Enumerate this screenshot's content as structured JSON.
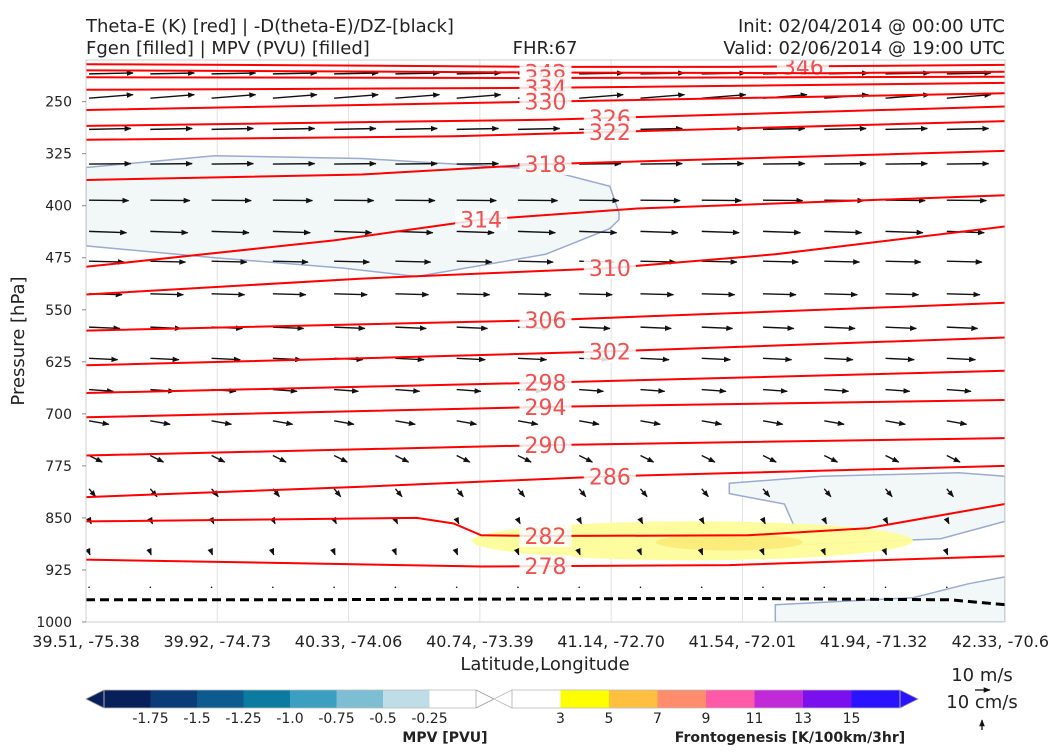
{
  "header": {
    "title_left_1": "Theta-E (K) [red] | -D(theta-E)/DZ-[black]",
    "title_left_2": "Fgen [filled] | MPV (PVU) [filled]",
    "fhr": "FHR:67",
    "init": "Init: 02/04/2014 @ 00:00 UTC",
    "valid": "Valid: 02/06/2014 @ 19:00 UTC"
  },
  "chart_data": {
    "type": "cross-section",
    "xlabel": "Latitude,Longitude",
    "ylabel": "Pressure [hPa]",
    "x_ticks": [
      "39.51, -75.38",
      "39.92, -74.73",
      "40.33, -74.06",
      "40.74, -73.39",
      "41.14, -72.70",
      "41.54, -72.01",
      "41.94, -71.32",
      "42.33, -70.6"
    ],
    "y_ticks": [
      250,
      325,
      400,
      475,
      550,
      625,
      700,
      775,
      850,
      925,
      1000
    ],
    "ylim": [
      190,
      1000
    ],
    "y_reversed": true,
    "theta_e_color": "#ff0000",
    "theta_e_label_color": "#f05050",
    "theta_e_contours": [
      {
        "value": "346",
        "label_x": 0.78,
        "points": [
          [
            0,
            196
          ],
          [
            0.3,
            198
          ],
          [
            0.5,
            200
          ],
          [
            0.7,
            200
          ],
          [
            1,
            197
          ]
        ]
      },
      {
        "value": "342",
        "label_x": 0.5,
        "points": [
          [
            0,
            205
          ],
          [
            0.2,
            206
          ],
          [
            0.5,
            208
          ],
          [
            0.8,
            209
          ],
          [
            1,
            207
          ]
        ]
      },
      {
        "value": "338",
        "label_x": 0.5,
        "points": [
          [
            0,
            215
          ],
          [
            0.5,
            216
          ],
          [
            1,
            214
          ]
        ]
      },
      {
        "value": "334",
        "label_x": 0.5,
        "points": [
          [
            0,
            233
          ],
          [
            0.5,
            230
          ],
          [
            1,
            223
          ]
        ]
      },
      {
        "value": "330",
        "label_x": 0.5,
        "points": [
          [
            0,
            262
          ],
          [
            0.5,
            250
          ],
          [
            1,
            238
          ]
        ]
      },
      {
        "value": "326",
        "label_x": 0.57,
        "points": [
          [
            0,
            285
          ],
          [
            0.5,
            276
          ],
          [
            1,
            257
          ]
        ]
      },
      {
        "value": "322",
        "label_x": 0.57,
        "points": [
          [
            0,
            305
          ],
          [
            0.4,
            300
          ],
          [
            1,
            278
          ]
        ]
      },
      {
        "value": "318",
        "label_x": 0.5,
        "points": [
          [
            0,
            363
          ],
          [
            0.3,
            355
          ],
          [
            0.5,
            340
          ],
          [
            1,
            321
          ]
        ]
      },
      {
        "value": "314",
        "label_x": 0.43,
        "points": [
          [
            0,
            488
          ],
          [
            0.27,
            450
          ],
          [
            0.43,
            420
          ],
          [
            0.6,
            404
          ],
          [
            1,
            385
          ]
        ]
      },
      {
        "value": "310",
        "label_x": 0.57,
        "points": [
          [
            0,
            528
          ],
          [
            0.3,
            505
          ],
          [
            0.57,
            490
          ],
          [
            0.75,
            470
          ],
          [
            1,
            430
          ]
        ]
      },
      {
        "value": "306",
        "label_x": 0.5,
        "points": [
          [
            0,
            580
          ],
          [
            0.5,
            565
          ],
          [
            1,
            540
          ]
        ]
      },
      {
        "value": "302",
        "label_x": 0.57,
        "points": [
          [
            0,
            630
          ],
          [
            0.3,
            620
          ],
          [
            0.57,
            610
          ],
          [
            1,
            590
          ]
        ]
      },
      {
        "value": "298",
        "label_x": 0.5,
        "points": [
          [
            0,
            670
          ],
          [
            0.5,
            655
          ],
          [
            1,
            638
          ]
        ]
      },
      {
        "value": "294",
        "label_x": 0.5,
        "points": [
          [
            0,
            705
          ],
          [
            0.5,
            690
          ],
          [
            1,
            680
          ]
        ]
      },
      {
        "value": "290",
        "label_x": 0.5,
        "points": [
          [
            0,
            760
          ],
          [
            0.5,
            745
          ],
          [
            1,
            735
          ]
        ]
      },
      {
        "value": "286",
        "label_x": 0.57,
        "points": [
          [
            0,
            820
          ],
          [
            0.3,
            805
          ],
          [
            0.57,
            790
          ],
          [
            1,
            775
          ]
        ]
      },
      {
        "value": "282",
        "label_x": 0.5,
        "points": [
          [
            0,
            855
          ],
          [
            0.36,
            850
          ],
          [
            0.4,
            858
          ],
          [
            0.43,
            875
          ],
          [
            0.5,
            876
          ],
          [
            0.72,
            875
          ],
          [
            0.85,
            865
          ],
          [
            1,
            830
          ]
        ]
      },
      {
        "value": "278",
        "label_x": 0.5,
        "points": [
          [
            0,
            910
          ],
          [
            0.43,
            920
          ],
          [
            0.7,
            918
          ],
          [
            1,
            905
          ]
        ]
      }
    ],
    "ground_line": {
      "style": "dashed",
      "color": "#000000",
      "points": [
        [
          0,
          968
        ],
        [
          0.2,
          968
        ],
        [
          0.7,
          966
        ],
        [
          0.94,
          968
        ],
        [
          1,
          975
        ]
      ]
    },
    "mpv_regions": [
      {
        "level": "-0.25",
        "color": "#f2f8f8",
        "edge": "#9aaad0",
        "points": [
          [
            0,
            345
          ],
          [
            0.14,
            328
          ],
          [
            0.3,
            332
          ],
          [
            0.5,
            348
          ],
          [
            0.57,
            372
          ],
          [
            0.58,
            410
          ],
          [
            0.58,
            420
          ],
          [
            0.57,
            433
          ],
          [
            0.5,
            470
          ],
          [
            0.36,
            502
          ],
          [
            0.28,
            490
          ],
          [
            0.14,
            475
          ],
          [
            0,
            458
          ]
        ]
      },
      {
        "level": "-0.25",
        "color": "#f2f8f8",
        "edge": "#9aaad0",
        "points": [
          [
            0.7,
            800
          ],
          [
            0.8,
            790
          ],
          [
            0.95,
            785
          ],
          [
            1,
            790
          ],
          [
            1,
            855
          ],
          [
            0.93,
            880
          ],
          [
            0.75,
            890
          ],
          [
            0.73,
            880
          ],
          [
            0.77,
            860
          ],
          [
            0.76,
            830
          ],
          [
            0.7,
            815
          ]
        ]
      },
      {
        "level": "-0.25",
        "color": "#f2f8f8",
        "edge": "#9aaad0",
        "points": [
          [
            0.75,
            975
          ],
          [
            0.9,
            965
          ],
          [
            0.96,
            945
          ],
          [
            1,
            935
          ],
          [
            1,
            1000
          ],
          [
            0.75,
            1000
          ]
        ]
      }
    ],
    "fgen_regions": [
      {
        "level": "3",
        "color": "#fdfd9a",
        "cx": 0.66,
        "cy": 883,
        "rx": 0.24,
        "ry": 28
      },
      {
        "level": "5",
        "color": "#fceb7a",
        "cx": 0.7,
        "cy": 885,
        "rx": 0.08,
        "ry": 12
      }
    ],
    "vectors": {
      "ref_magnitude": 10,
      "rows": [
        {
          "p": 210,
          "u": 1.0,
          "v": 0.02
        },
        {
          "p": 245,
          "u": 1.0,
          "v": 0.08
        },
        {
          "p": 290,
          "u": 0.95,
          "v": 0.02
        },
        {
          "p": 340,
          "u": 0.95,
          "v": 0.01
        },
        {
          "p": 392,
          "u": 0.9,
          "v": -0.01
        },
        {
          "p": 437,
          "u": 0.85,
          "v": -0.03
        },
        {
          "p": 480,
          "u": 0.8,
          "v": -0.02
        },
        {
          "p": 527,
          "u": 0.75,
          "v": -0.02
        },
        {
          "p": 575,
          "u": 0.7,
          "v": -0.03
        },
        {
          "p": 620,
          "u": 0.65,
          "v": -0.03
        },
        {
          "p": 665,
          "u": 0.55,
          "v": -0.04
        },
        {
          "p": 710,
          "u": 0.45,
          "v": -0.08
        },
        {
          "p": 760,
          "u": 0.3,
          "v": -0.15
        },
        {
          "p": 808,
          "u": 0.15,
          "v": -0.18
        },
        {
          "p": 852,
          "u": 0.05,
          "v": -0.1
        },
        {
          "p": 900,
          "u": 0.02,
          "v": -0.05
        },
        {
          "p": 950,
          "u": 0.01,
          "v": -0.02
        }
      ]
    }
  },
  "mpv_colorbar": {
    "label": "MPV [PVU]",
    "colors": [
      "#08205a",
      "#0b3c78",
      "#0d5a8f",
      "#0c7ba0",
      "#3a9fc0",
      "#7ebed2",
      "#bedde6",
      "#ffffff"
    ],
    "ticks": [
      "-1.75",
      "-1.5",
      "-1.25",
      "-1.0",
      "-0.75",
      "-0.5",
      "-0.25"
    ]
  },
  "fgen_colorbar": {
    "label": "Frontogenesis [K/100km/3hr]",
    "colors": [
      "#ffffff",
      "#ffff00",
      "#ffc040",
      "#ff8c6c",
      "#ff5aa8",
      "#c02ad8",
      "#7a10ee",
      "#2a14ff"
    ],
    "ticks": [
      "3",
      "5",
      "7",
      "9",
      "11",
      "13",
      "15"
    ]
  },
  "vector_legend": {
    "label_1": "10 m/s",
    "label_2": "10 cm/s"
  }
}
